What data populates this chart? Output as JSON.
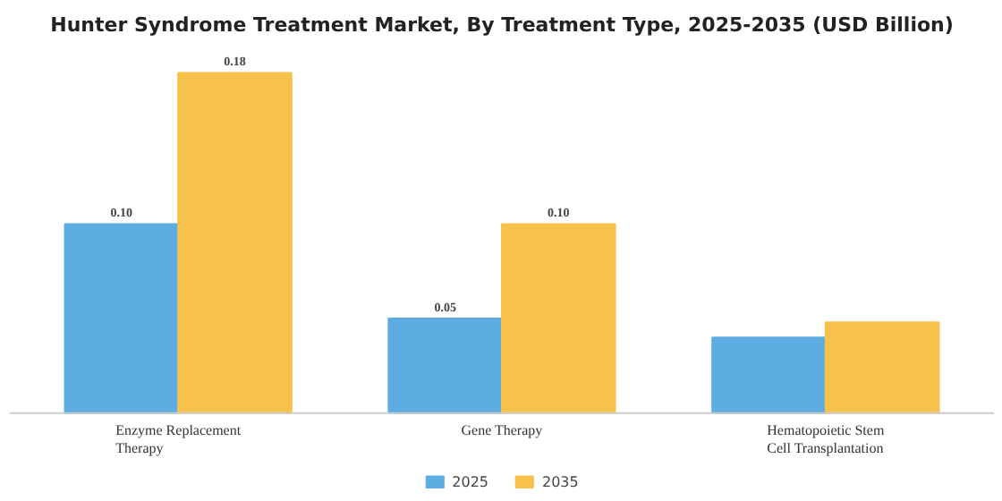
{
  "chart_data": {
    "type": "bar",
    "title": "Hunter Syndrome Treatment Market, By Treatment Type, 2025-2035 (USD Billion)",
    "categories": [
      "Enzyme Replacement Therapy",
      "Gene Therapy",
      "Hematopoietic Stem Cell Transplantation"
    ],
    "series": [
      {
        "name": "2025",
        "color": "#5dade2",
        "values": [
          0.1,
          0.05,
          0.04
        ],
        "value_labels": [
          "0.10",
          "0.05",
          null
        ]
      },
      {
        "name": "2035",
        "color": "#f7c24c",
        "values": [
          0.18,
          0.1,
          0.048
        ],
        "value_labels": [
          "0.18",
          "0.10",
          null
        ]
      }
    ],
    "legend": "bottom",
    "grid": false
  }
}
